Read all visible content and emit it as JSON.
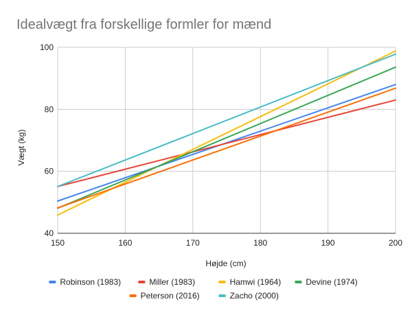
{
  "chart_data": {
    "type": "line",
    "title": "Idealvægt fra forskellige formler for mænd",
    "xlabel": "Højde (cm)",
    "ylabel": "Vægt (kg)",
    "xlim": [
      150,
      200
    ],
    "ylim": [
      40,
      100
    ],
    "x_ticks": [
      "150",
      "160",
      "170",
      "180",
      "190",
      "200"
    ],
    "y_ticks": [
      "40",
      "60",
      "80",
      "100"
    ],
    "x_tick_values": [
      150,
      160,
      170,
      180,
      190,
      200
    ],
    "y_tick_values": [
      40,
      60,
      80,
      100
    ],
    "grid": true,
    "legend_position": "bottom",
    "x": [
      150,
      200
    ],
    "series": [
      {
        "name": "Robinson (1983)",
        "color": "#4285f4",
        "values": [
          50.4,
          88.0
        ]
      },
      {
        "name": "Miller (1983)",
        "color": "#ea4335",
        "values": [
          55.1,
          83.0
        ]
      },
      {
        "name": "Hamwi (1964)",
        "color": "#fbbc04",
        "values": [
          45.9,
          98.8
        ]
      },
      {
        "name": "Devine (1974)",
        "color": "#34a853",
        "values": [
          48.1,
          93.6
        ]
      },
      {
        "name": "Peterson (2016)",
        "color": "#ff6d01",
        "values": [
          48.2,
          86.8
        ]
      },
      {
        "name": "Zacho (2000)",
        "color": "#46bdc6",
        "values": [
          55.1,
          97.8
        ]
      }
    ]
  }
}
